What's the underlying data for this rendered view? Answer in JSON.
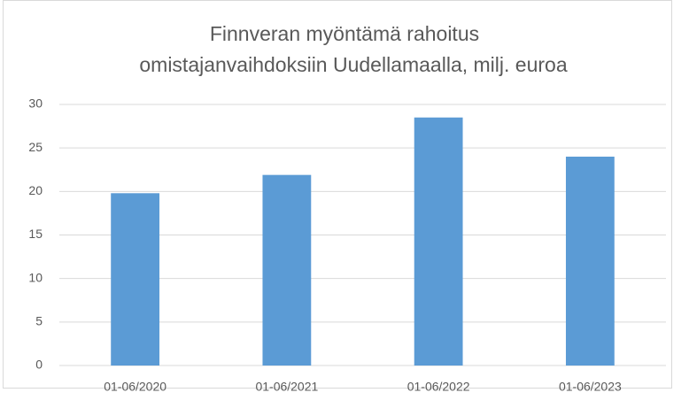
{
  "chart_data": {
    "type": "bar",
    "title": [
      "Finnveran myöntämä rahoitus",
      "omistajanvaihdoksiin Uudellamaalla, milj. euroa"
    ],
    "categories": [
      "01-06/2020",
      "01-06/2021",
      "01-06/2022",
      "01-06/2023"
    ],
    "values": [
      19.8,
      21.9,
      28.5,
      24.0
    ],
    "color": "#5b9bd5",
    "ylim": [
      0,
      30
    ],
    "yticks": [
      0,
      5,
      10,
      15,
      20,
      25,
      30
    ],
    "grid": true
  }
}
